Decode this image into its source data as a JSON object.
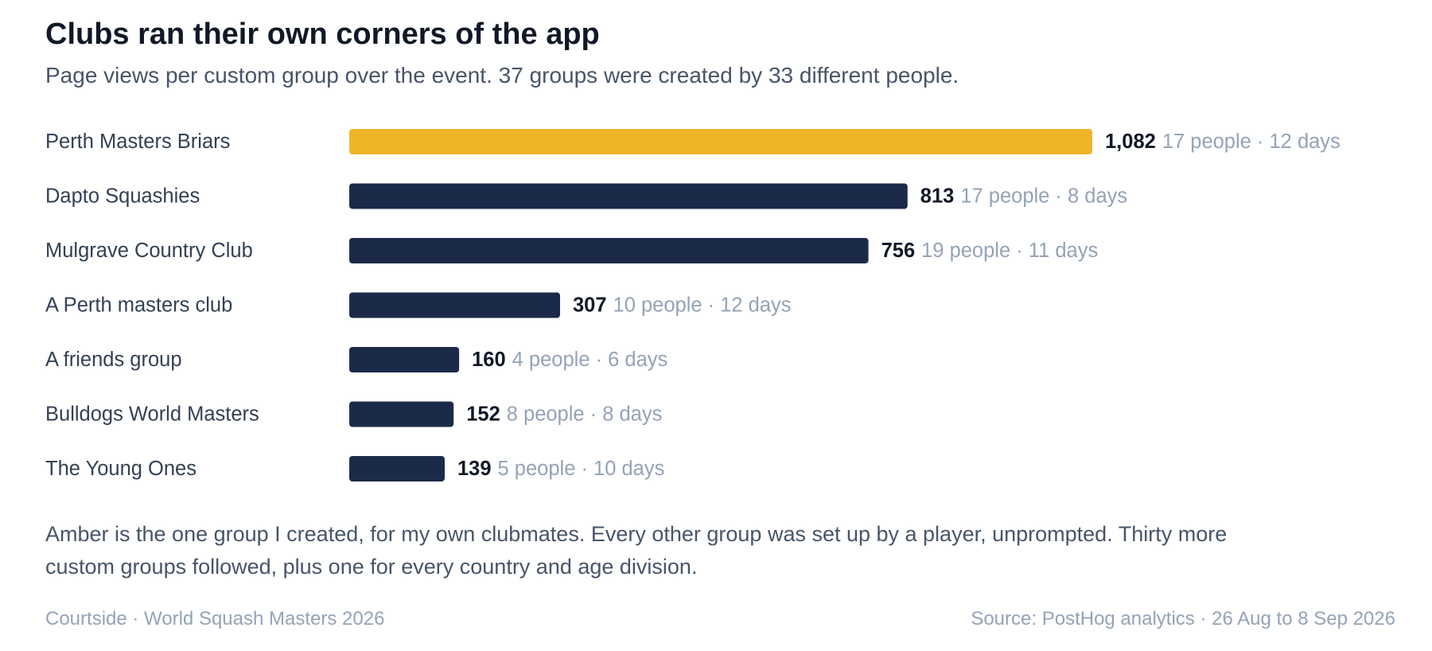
{
  "header": {
    "title": "Clubs ran their own corners of the app",
    "subtitle": "Page views per custom group over the event. 37 groups were created by 33 different people."
  },
  "chart_data": {
    "type": "bar",
    "orientation": "horizontal",
    "categories": [
      "Perth Masters Briars",
      "Dapto Squashies",
      "Mulgrave Country Club",
      "A Perth masters club",
      "A friends group",
      "Bulldogs World Masters",
      "The Young Ones"
    ],
    "values": [
      1082,
      813,
      756,
      307,
      160,
      152,
      139
    ],
    "value_labels": [
      "1,082",
      "813",
      "756",
      "307",
      "160",
      "152",
      "139"
    ],
    "meta_labels": [
      "17 people · 12 days",
      "17 people · 8 days",
      "19 people · 11 days",
      "10 people · 12 days",
      "4 people · 6 days",
      "8 people · 8 days",
      "5 people · 10 days"
    ],
    "highlight_index": 0,
    "colors": {
      "highlight": "#f0b429",
      "default": "#1c2a4a"
    },
    "xlim": [
      0,
      1082
    ],
    "grid": false,
    "legend": "none"
  },
  "note": "Amber is the one group I created, for my own clubmates. Every other group was set up by a player, unprompted. Thirty more custom groups followed, plus one for every country and age division.",
  "footer": {
    "left": "Courtside · World Squash Masters 2026",
    "right": "Source: PostHog analytics · 26 Aug to 8 Sep 2026"
  }
}
